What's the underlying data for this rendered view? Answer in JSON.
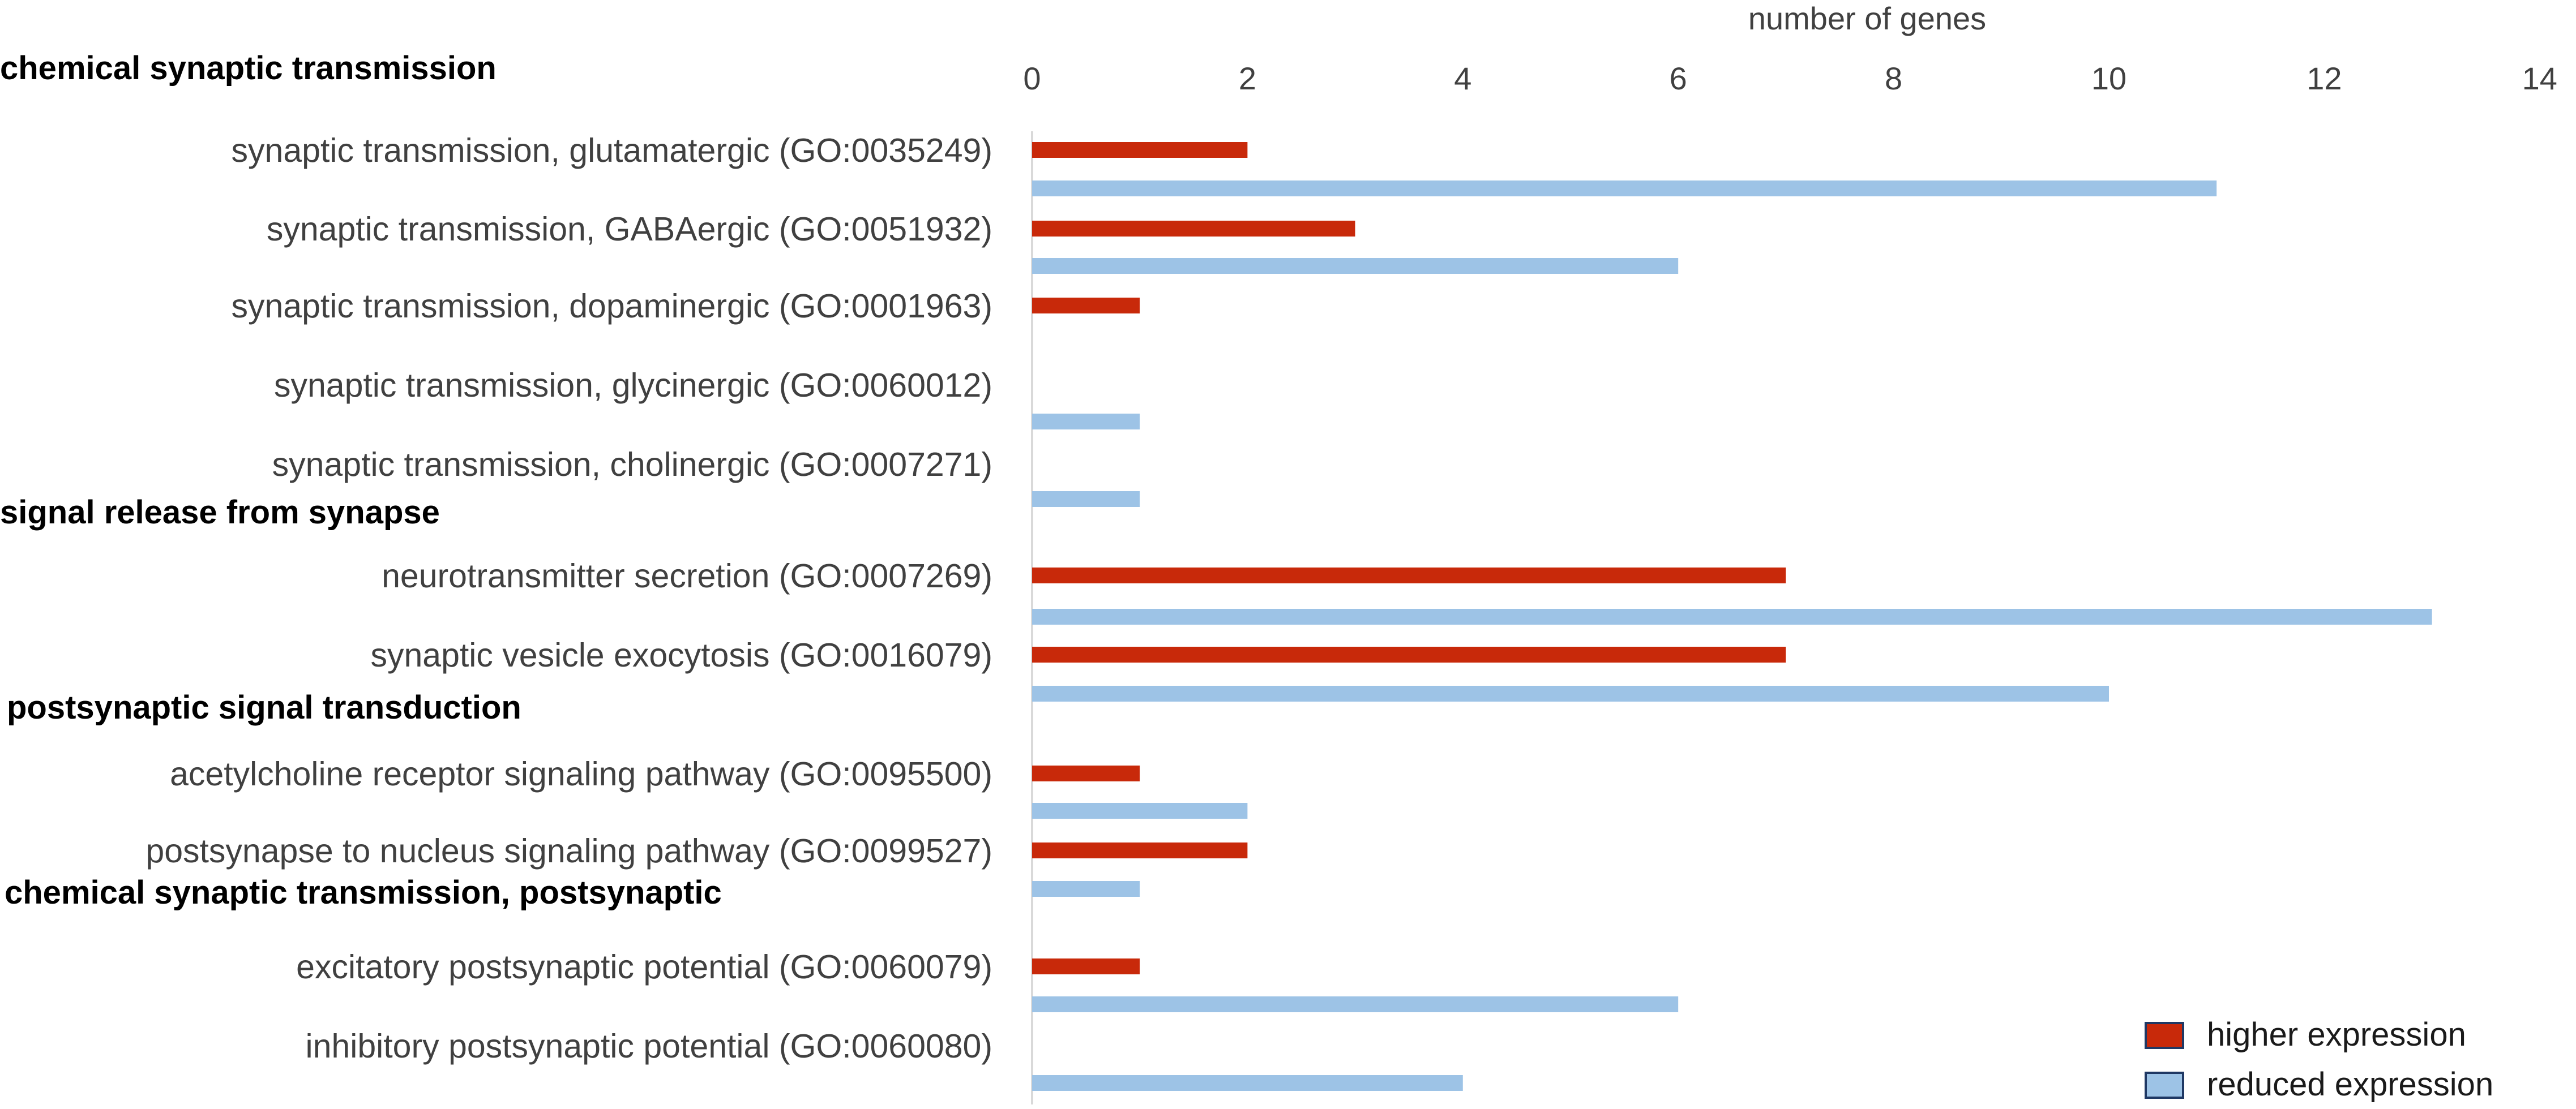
{
  "chart_data": {
    "type": "bar",
    "orientation": "horizontal",
    "xlabel": "number of genes",
    "xlim": [
      0,
      14
    ],
    "xticks": [
      0,
      2,
      4,
      6,
      8,
      10,
      12,
      14
    ],
    "grid": false,
    "legend_position": "bottom-right",
    "series": [
      {
        "name": "higher expression",
        "color": "#c8290a"
      },
      {
        "name": "reduced expression",
        "color": "#9dc3e6"
      }
    ],
    "groups": [
      {
        "label": "chemical synaptic transmission",
        "categories": [
          {
            "label": "synaptic transmission, glutamatergic (GO:0035249)",
            "higher": 2,
            "reduced": 11
          },
          {
            "label": "synaptic transmission, GABAergic (GO:0051932)",
            "higher": 3,
            "reduced": 6
          },
          {
            "label": "synaptic transmission, dopaminergic (GO:0001963)",
            "higher": 1,
            "reduced": 0
          },
          {
            "label": "synaptic transmission, glycinergic (GO:0060012)",
            "higher": 0,
            "reduced": 1
          },
          {
            "label": "synaptic transmission, cholinergic (GO:0007271)",
            "higher": 0,
            "reduced": 1
          }
        ]
      },
      {
        "label": "signal release from synapse",
        "categories": [
          {
            "label": "neurotransmitter secretion (GO:0007269)",
            "higher": 7,
            "reduced": 13
          },
          {
            "label": "synaptic vesicle exocytosis (GO:0016079)",
            "higher": 7,
            "reduced": 10
          }
        ]
      },
      {
        "label": "postsynaptic signal transduction",
        "categories": [
          {
            "label": "acetylcholine receptor signaling pathway (GO:0095500)",
            "higher": 1,
            "reduced": 2
          },
          {
            "label": "postsynapse to nucleus signaling pathway (GO:0099527)",
            "higher": 2,
            "reduced": 1
          }
        ]
      },
      {
        "label": "chemical synaptic transmission, postsynaptic",
        "categories": [
          {
            "label": "excitatory postsynaptic potential (GO:0060079)",
            "higher": 1,
            "reduced": 6
          },
          {
            "label": "inhibitory postsynaptic potential (GO:0060080)",
            "higher": 0,
            "reduced": 4
          }
        ]
      }
    ]
  }
}
